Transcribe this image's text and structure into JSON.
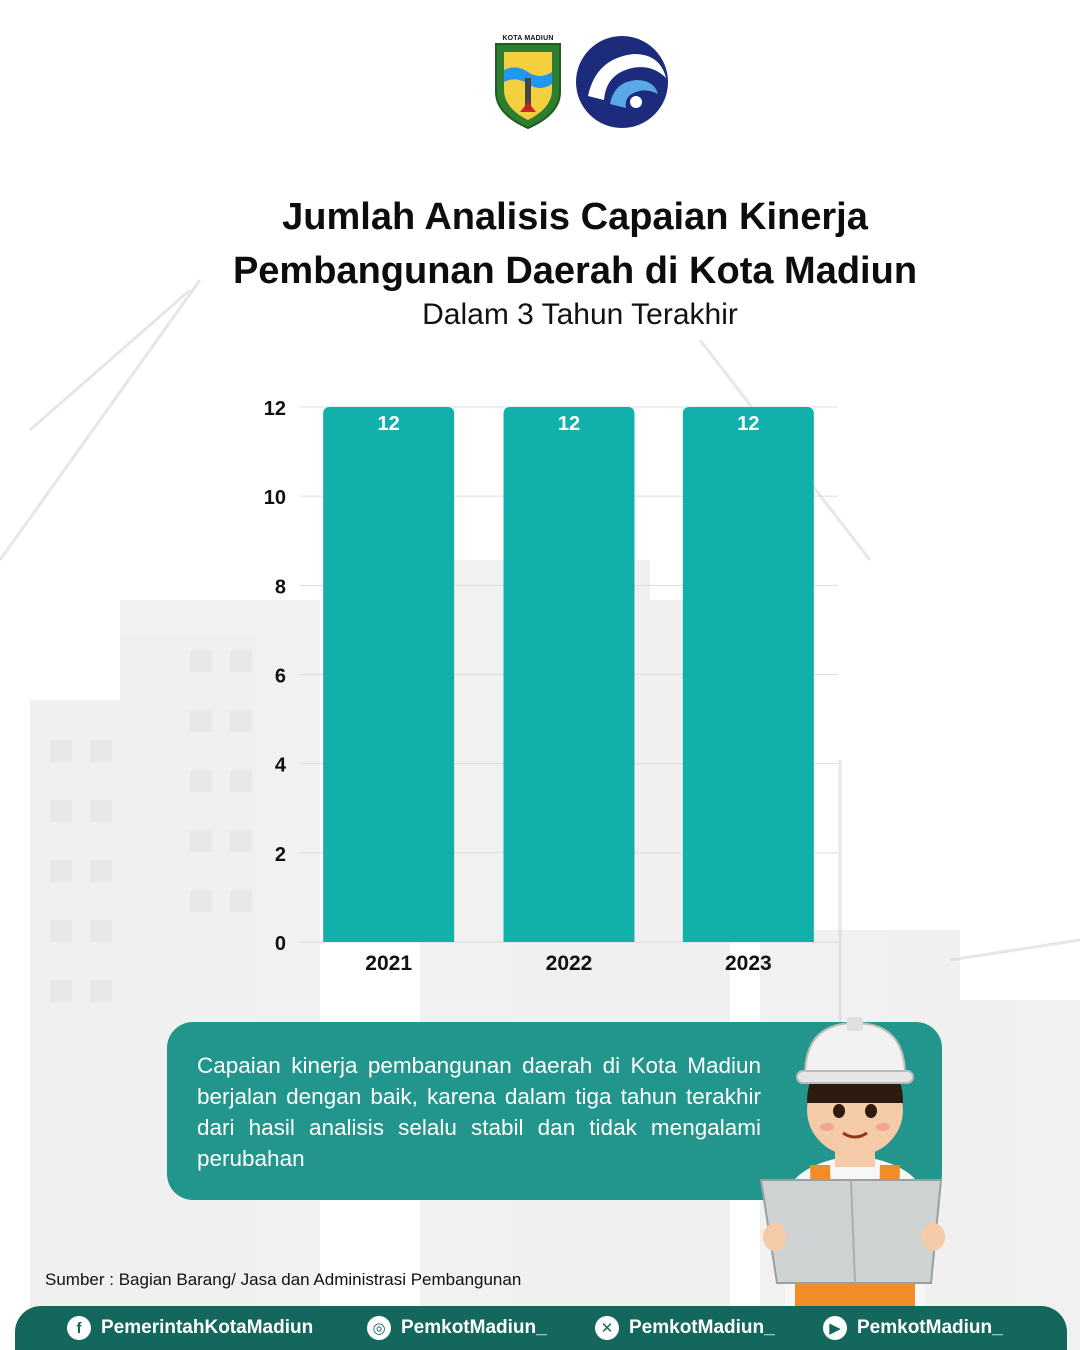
{
  "logos": {
    "city_text": "KOTA MADIUN"
  },
  "title": {
    "line1": "Jumlah Analisis Capaian Kinerja",
    "line2": "Pembangunan Daerah di Kota Madiun",
    "subtitle": "Dalam 3 Tahun Terakhir"
  },
  "chart_data": {
    "type": "bar",
    "categories": [
      "2021",
      "2022",
      "2023"
    ],
    "values": [
      12,
      12,
      12
    ],
    "data_labels": [
      "12",
      "12",
      "12"
    ],
    "title": "",
    "xlabel": "",
    "ylabel": "",
    "ylim": [
      0,
      12
    ],
    "yticks": [
      0,
      2,
      4,
      6,
      8,
      10,
      12
    ],
    "grid": true,
    "legend": "none",
    "bar_color": "#12b0aa"
  },
  "info": {
    "text": "Capaian kinerja pembangunan daerah di Kota Madiun berjalan dengan baik, karena dalam tiga tahun terakhir dari hasil analisis selalu stabil dan tidak mengalami perubahan"
  },
  "source": "Sumber : Bagian Barang/ Jasa dan Administrasi Pembangunan",
  "footer": {
    "socials": [
      {
        "icon": "facebook-icon",
        "glyph": "f",
        "label": "PemerintahKotaMadiun"
      },
      {
        "icon": "instagram-icon",
        "glyph": "◎",
        "label": "PemkotMadiun_"
      },
      {
        "icon": "x-twitter-icon",
        "glyph": "✕",
        "label": "PemkotMadiun_"
      },
      {
        "icon": "youtube-icon",
        "glyph": "▶",
        "label": "PemkotMadiun_"
      }
    ]
  },
  "colors": {
    "bar": "#12b0aa",
    "info_box": "#22958d",
    "footer": "#14675d"
  }
}
